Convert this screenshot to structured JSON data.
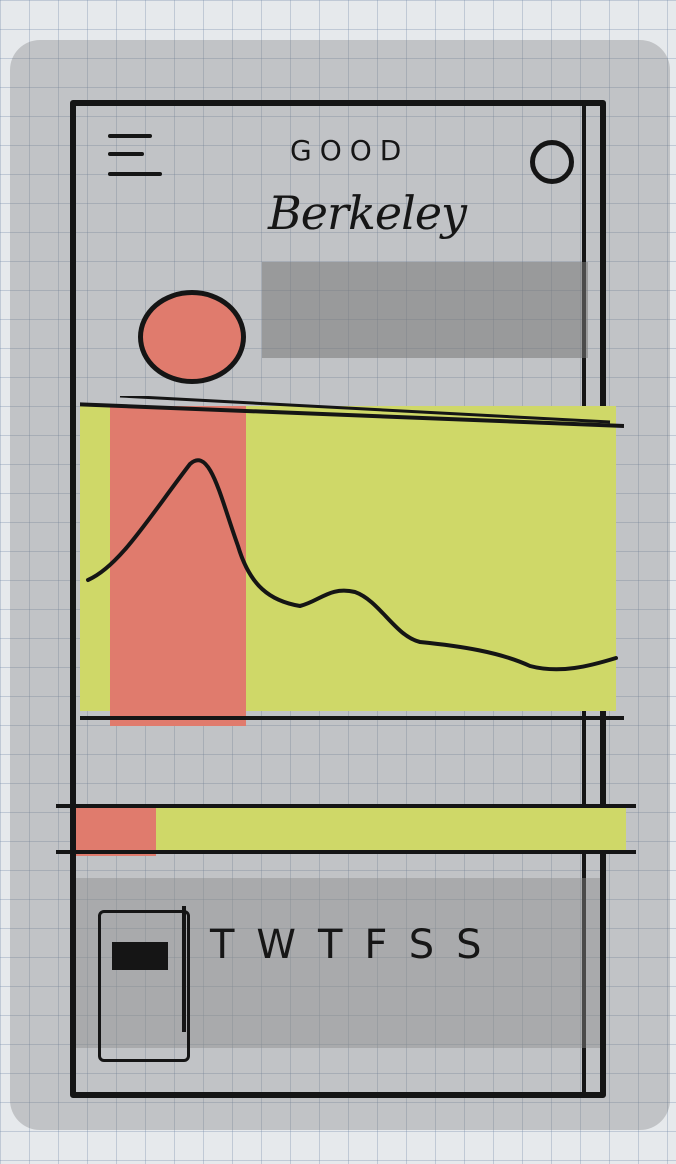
{
  "header": {
    "title_top": "GOOD",
    "title_main": "Berkeley"
  },
  "icons": {
    "menu": "menu-icon",
    "profile": "profile-icon",
    "status": "status-dot"
  },
  "days": "TWTFSS",
  "colors": {
    "ink": "#151515",
    "red": "#e07b6d",
    "yellow": "#cfd868",
    "gray": "#9a9a9a"
  }
}
